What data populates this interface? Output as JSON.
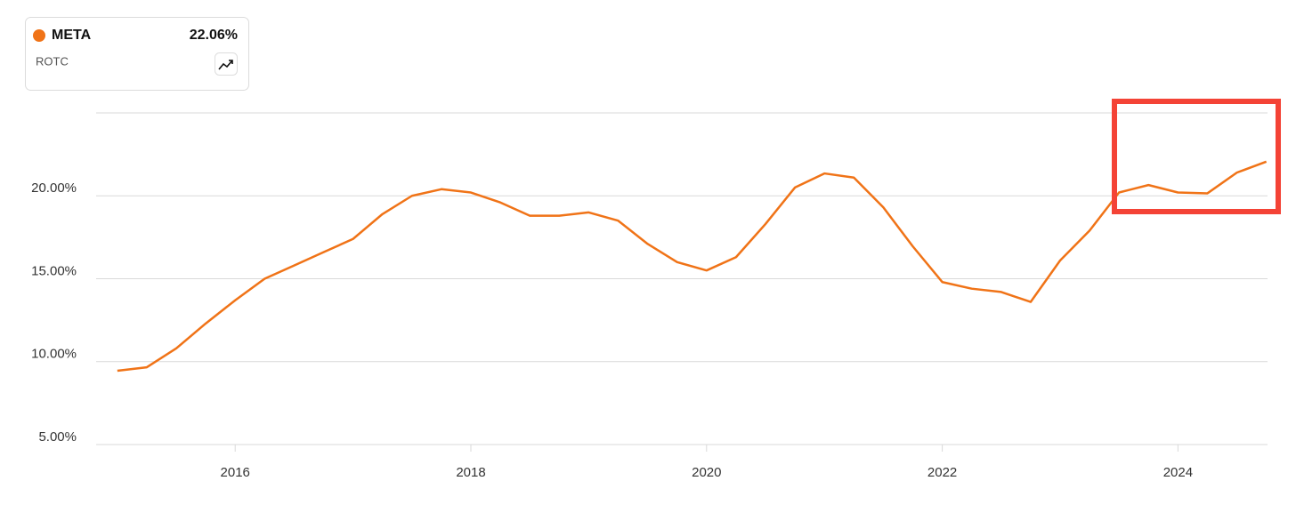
{
  "chart_data": {
    "type": "line",
    "card": {
      "metric": "ROTC",
      "value": "22.06%"
    },
    "x": [
      2015,
      2015.25,
      2015.5,
      2015.75,
      2016,
      2016.25,
      2016.5,
      2016.75,
      2017,
      2017.25,
      2017.5,
      2017.75,
      2018,
      2018.25,
      2018.5,
      2018.75,
      2019,
      2019.25,
      2019.5,
      2019.75,
      2020,
      2020.25,
      2020.5,
      2020.75,
      2021,
      2021.25,
      2021.5,
      2021.75,
      2022,
      2022.25,
      2022.5,
      2022.75,
      2023,
      2023.25,
      2023.5,
      2023.75,
      2024,
      2024.25,
      2024.5,
      2024.75
    ],
    "series": [
      {
        "name": "META",
        "color": "#f07317",
        "values": [
          9.45,
          9.66,
          10.8,
          12.3,
          13.7,
          15.0,
          15.8,
          16.6,
          17.4,
          18.9,
          20.0,
          20.4,
          20.2,
          19.6,
          18.8,
          18.8,
          19.0,
          18.5,
          17.1,
          16.0,
          15.5,
          16.3,
          18.3,
          20.5,
          21.35,
          21.1,
          19.3,
          16.95,
          14.8,
          14.4,
          14.2,
          13.6,
          16.1,
          17.9,
          20.2,
          20.65,
          20.2,
          20.15,
          21.4,
          22.06
        ]
      }
    ],
    "xlim": [
      2014.82,
      2024.76
    ],
    "xticks": [
      2016,
      2018,
      2020,
      2022,
      2024
    ],
    "ylim": [
      5,
      25
    ],
    "yticks": [
      {
        "value": 5,
        "label": "5.00%"
      },
      {
        "value": 10,
        "label": "10.00%"
      },
      {
        "value": 15,
        "label": "15.00%"
      },
      {
        "value": 20,
        "label": "20.00%"
      }
    ],
    "grid": true
  }
}
